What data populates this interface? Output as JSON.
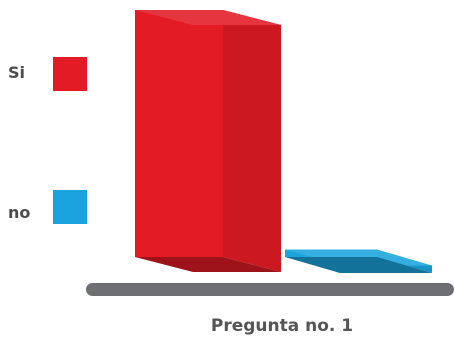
{
  "chart_data": {
    "type": "bar",
    "style": "3d",
    "categories": [
      "Pregunta no. 1"
    ],
    "series": [
      {
        "name": "Si",
        "values": [
          100
        ],
        "color": "#e21b25"
      },
      {
        "name": "no",
        "values": [
          3
        ],
        "color": "#1aa3dc"
      }
    ],
    "ylim": [
      0,
      100
    ],
    "grid": false,
    "legend_position": "left",
    "title": "",
    "xlabel": "",
    "ylabel": ""
  }
}
